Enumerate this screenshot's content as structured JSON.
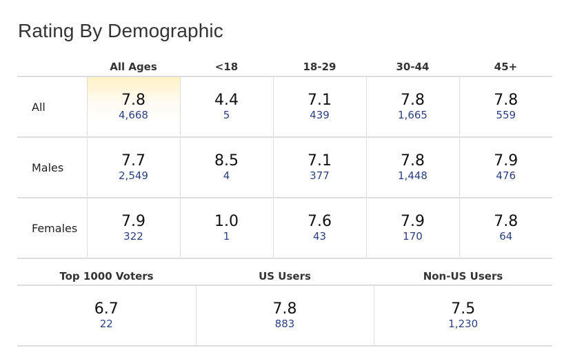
{
  "title": "Rating By Demographic",
  "columns": [
    "",
    "All Ages",
    "<18",
    "18-29",
    "30-44",
    "45+"
  ],
  "rows": [
    {
      "label": "All",
      "cells": [
        {
          "rating": "7.8",
          "votes": "4,668"
        },
        {
          "rating": "4.4",
          "votes": "5"
        },
        {
          "rating": "7.1",
          "votes": "439"
        },
        {
          "rating": "7.8",
          "votes": "1,665"
        },
        {
          "rating": "7.8",
          "votes": "559"
        }
      ]
    },
    {
      "label": "Males",
      "cells": [
        {
          "rating": "7.7",
          "votes": "2,549"
        },
        {
          "rating": "8.5",
          "votes": "4"
        },
        {
          "rating": "7.1",
          "votes": "377"
        },
        {
          "rating": "7.8",
          "votes": "1,448"
        },
        {
          "rating": "7.9",
          "votes": "476"
        }
      ]
    },
    {
      "label": "Females",
      "cells": [
        {
          "rating": "7.9",
          "votes": "322"
        },
        {
          "rating": "1.0",
          "votes": "1"
        },
        {
          "rating": "7.6",
          "votes": "43"
        },
        {
          "rating": "7.9",
          "votes": "170"
        },
        {
          "rating": "7.8",
          "votes": "64"
        }
      ]
    }
  ],
  "bottom": {
    "columns": [
      "Top 1000 Voters",
      "US Users",
      "Non-US Users"
    ],
    "cells": [
      {
        "rating": "6.7",
        "votes": "22"
      },
      {
        "rating": "7.8",
        "votes": "883"
      },
      {
        "rating": "7.5",
        "votes": "1,230"
      }
    ]
  }
}
